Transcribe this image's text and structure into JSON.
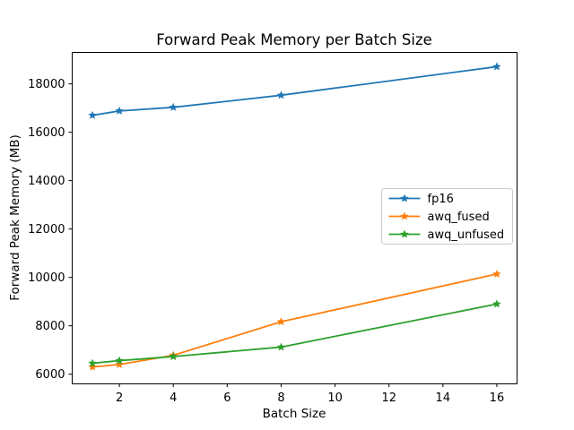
{
  "chart_data": {
    "type": "line",
    "title": "Forward Peak Memory per Batch Size",
    "xlabel": "Batch Size",
    "ylabel": "Forward Peak Memory (MB)",
    "x": [
      1,
      2,
      4,
      8,
      16
    ],
    "series": [
      {
        "name": "fp16",
        "color": "#1f77b4",
        "values": [
          16700,
          16880,
          17030,
          17530,
          18710
        ]
      },
      {
        "name": "awq_fused",
        "color": "#ff7f0e",
        "values": [
          6300,
          6400,
          6780,
          8170,
          10140
        ]
      },
      {
        "name": "awq_unfused",
        "color": "#2ca02c",
        "values": [
          6450,
          6560,
          6730,
          7120,
          8900
        ]
      }
    ],
    "marker": "star",
    "xticks": [
      2,
      4,
      6,
      8,
      10,
      12,
      14,
      16
    ],
    "yticks": [
      6000,
      8000,
      10000,
      12000,
      14000,
      16000,
      18000
    ],
    "xlim": [
      0.25,
      16.75
    ],
    "ylim": [
      5600,
      19300
    ],
    "legend_position": "center right",
    "grid": false,
    "colors": {
      "background": "#ffffff",
      "axis": "#000000",
      "legend_border": "#cccccc",
      "legend_background": "#ffffff"
    }
  }
}
